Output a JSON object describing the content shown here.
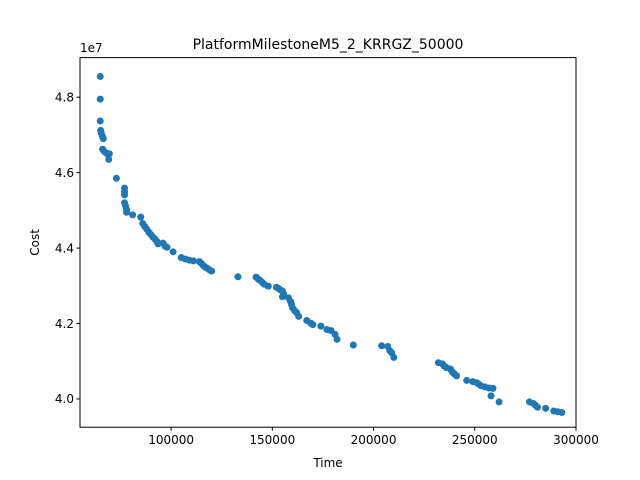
{
  "chart_data": {
    "type": "scatter",
    "title": "PlatformMilestoneM5_2_KRRGZ_50000",
    "xlabel": "Time",
    "ylabel": "Cost",
    "offset_label": "1e7",
    "xlim": [
      55000,
      300000
    ],
    "ylim": [
      3.925,
      4.905
    ],
    "x_ticks": [
      100000,
      150000,
      200000,
      250000,
      300000
    ],
    "x_tick_labels": [
      "100000",
      "150000",
      "200000",
      "250000",
      "300000"
    ],
    "y_ticks": [
      4.0,
      4.2,
      4.4,
      4.6,
      4.8
    ],
    "y_tick_labels": [
      "4.0",
      "4.2",
      "4.4",
      "4.6",
      "4.8"
    ],
    "grid": false,
    "marker_color": "#1f77b4",
    "series": [
      {
        "points": [
          [
            65000,
            4.855
          ],
          [
            65000,
            4.795
          ],
          [
            65000,
            4.737
          ],
          [
            65200,
            4.712
          ],
          [
            65500,
            4.705
          ],
          [
            66000,
            4.697
          ],
          [
            66500,
            4.69
          ],
          [
            66200,
            4.662
          ],
          [
            67000,
            4.656
          ],
          [
            68000,
            4.652
          ],
          [
            69000,
            4.647
          ],
          [
            69500,
            4.65
          ],
          [
            69200,
            4.635
          ],
          [
            73000,
            4.585
          ],
          [
            77000,
            4.559
          ],
          [
            77000,
            4.549
          ],
          [
            77000,
            4.541
          ],
          [
            77000,
            4.52
          ],
          [
            77500,
            4.512
          ],
          [
            78000,
            4.502
          ],
          [
            78000,
            4.495
          ],
          [
            81000,
            4.488
          ],
          [
            85000,
            4.482
          ],
          [
            86000,
            4.465
          ],
          [
            87000,
            4.457
          ],
          [
            88000,
            4.45
          ],
          [
            89000,
            4.442
          ],
          [
            90000,
            4.436
          ],
          [
            91000,
            4.429
          ],
          [
            92000,
            4.424
          ],
          [
            93000,
            4.417
          ],
          [
            93500,
            4.411
          ],
          [
            96000,
            4.413
          ],
          [
            97000,
            4.405
          ],
          [
            98000,
            4.402
          ],
          [
            101000,
            4.39
          ],
          [
            105000,
            4.375
          ],
          [
            107000,
            4.371
          ],
          [
            109000,
            4.368
          ],
          [
            111000,
            4.366
          ],
          [
            114000,
            4.364
          ],
          [
            115000,
            4.359
          ],
          [
            116000,
            4.353
          ],
          [
            117000,
            4.349
          ],
          [
            118000,
            4.346
          ],
          [
            119000,
            4.342
          ],
          [
            120000,
            4.339
          ],
          [
            133000,
            4.324
          ],
          [
            142000,
            4.323
          ],
          [
            143000,
            4.318
          ],
          [
            144000,
            4.314
          ],
          [
            145000,
            4.309
          ],
          [
            146000,
            4.304
          ],
          [
            148000,
            4.299
          ],
          [
            152000,
            4.296
          ],
          [
            153000,
            4.293
          ],
          [
            154000,
            4.289
          ],
          [
            155000,
            4.286
          ],
          [
            155500,
            4.279
          ],
          [
            155000,
            4.271
          ],
          [
            158000,
            4.268
          ],
          [
            159000,
            4.258
          ],
          [
            159500,
            4.25
          ],
          [
            160000,
            4.241
          ],
          [
            161000,
            4.234
          ],
          [
            162000,
            4.229
          ],
          [
            163000,
            4.219
          ],
          [
            167000,
            4.208
          ],
          [
            169000,
            4.201
          ],
          [
            170000,
            4.197
          ],
          [
            174000,
            4.193
          ],
          [
            177000,
            4.184
          ],
          [
            179000,
            4.181
          ],
          [
            181000,
            4.171
          ],
          [
            182000,
            4.158
          ],
          [
            190000,
            4.143
          ],
          [
            204000,
            4.141
          ],
          [
            207000,
            4.139
          ],
          [
            208000,
            4.128
          ],
          [
            209000,
            4.122
          ],
          [
            210000,
            4.11
          ],
          [
            232000,
            4.096
          ],
          [
            234000,
            4.093
          ],
          [
            235000,
            4.087
          ],
          [
            236000,
            4.083
          ],
          [
            238000,
            4.079
          ],
          [
            239000,
            4.071
          ],
          [
            240000,
            4.066
          ],
          [
            241000,
            4.061
          ],
          [
            246000,
            4.049
          ],
          [
            249000,
            4.046
          ],
          [
            251000,
            4.043
          ],
          [
            252000,
            4.039
          ],
          [
            253000,
            4.035
          ],
          [
            255000,
            4.032
          ],
          [
            257000,
            4.029
          ],
          [
            259000,
            4.028
          ],
          [
            258000,
            4.008
          ],
          [
            262000,
            3.992
          ],
          [
            277000,
            3.992
          ],
          [
            279000,
            3.988
          ],
          [
            280000,
            3.983
          ],
          [
            281000,
            3.978
          ],
          [
            285000,
            3.975
          ],
          [
            289000,
            3.968
          ],
          [
            291000,
            3.966
          ],
          [
            293000,
            3.964
          ]
        ]
      }
    ]
  }
}
